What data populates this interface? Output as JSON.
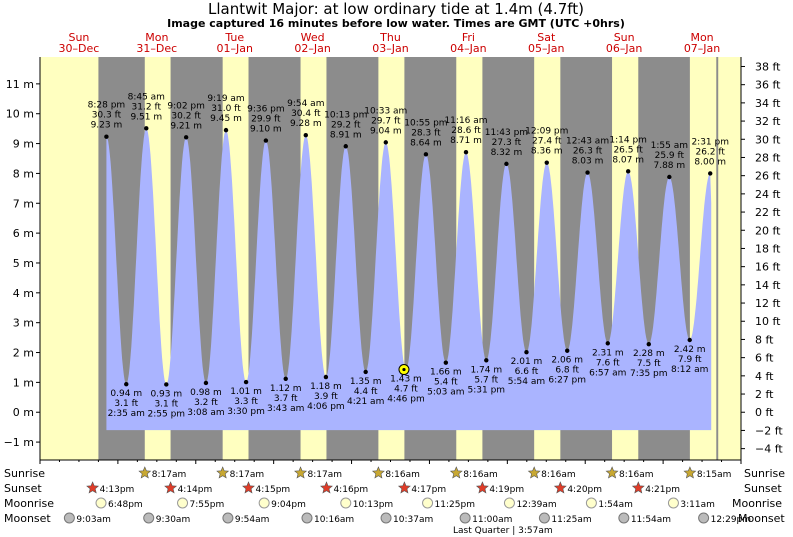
{
  "title": "Llantwit Major: at low  ordinary tide at 1.4m (4.7ft)",
  "subtitle": "Image captured 16 minutes before low water. Times are GMT (UTC +0hrs)",
  "colors": {
    "day_bg": "#ffffc0",
    "night_bg": "#8c8c8c",
    "tide_fill": "#aab4ff",
    "day_label": "#cc0000"
  },
  "days": [
    {
      "dow": "Sun",
      "date": "30–Dec"
    },
    {
      "dow": "Mon",
      "date": "31–Dec"
    },
    {
      "dow": "Tue",
      "date": "01–Jan"
    },
    {
      "dow": "Wed",
      "date": "02–Jan"
    },
    {
      "dow": "Thu",
      "date": "03–Jan"
    },
    {
      "dow": "Fri",
      "date": "04–Jan"
    },
    {
      "dow": "Sat",
      "date": "05–Jan"
    },
    {
      "dow": "Sun",
      "date": "06–Jan"
    },
    {
      "dow": "Mon",
      "date": "07–Jan"
    }
  ],
  "chart_data": {
    "type": "area",
    "title": "Llantwit Major: at low  ordinary tide at 1.4m (4.7ft)",
    "left_axis": {
      "ylim": [
        -1.6,
        11.9
      ],
      "ticks": [
        {
          "v": -1,
          "label": "−1 m"
        },
        {
          "v": 0,
          "label": "0 m"
        },
        {
          "v": 1,
          "label": "1 m"
        },
        {
          "v": 2,
          "label": "2 m"
        },
        {
          "v": 3,
          "label": "3 m"
        },
        {
          "v": 4,
          "label": "4 m"
        },
        {
          "v": 5,
          "label": "5 m"
        },
        {
          "v": 6,
          "label": "6 m"
        },
        {
          "v": 7,
          "label": "7 m"
        },
        {
          "v": 8,
          "label": "8 m"
        },
        {
          "v": 9,
          "label": "9 m"
        },
        {
          "v": 10,
          "label": "10 m"
        },
        {
          "v": 11,
          "label": "11 m"
        }
      ]
    },
    "right_axis": {
      "ticks": [
        {
          "v": -4,
          "label": "−4 ft"
        },
        {
          "v": -2,
          "label": "−2 ft"
        },
        {
          "v": 0,
          "label": "0 ft"
        },
        {
          "v": 2,
          "label": "2 ft"
        },
        {
          "v": 4,
          "label": "4 ft"
        },
        {
          "v": 6,
          "label": "6 ft"
        },
        {
          "v": 8,
          "label": "8 ft"
        },
        {
          "v": 10,
          "label": "10 ft"
        },
        {
          "v": 12,
          "label": "12 ft"
        },
        {
          "v": 14,
          "label": "14 ft"
        },
        {
          "v": 16,
          "label": "16 ft"
        },
        {
          "v": 18,
          "label": "18 ft"
        },
        {
          "v": 20,
          "label": "20 ft"
        },
        {
          "v": 22,
          "label": "22 ft"
        },
        {
          "v": 24,
          "label": "24 ft"
        },
        {
          "v": 26,
          "label": "26 ft"
        },
        {
          "v": 28,
          "label": "28 ft"
        },
        {
          "v": 30,
          "label": "30 ft"
        },
        {
          "v": 32,
          "label": "32 ft"
        },
        {
          "v": 34,
          "label": "34 ft"
        },
        {
          "v": 36,
          "label": "36 ft"
        },
        {
          "v": 38,
          "label": "38 ft"
        }
      ]
    },
    "x_range_hours": [
      0,
      216
    ],
    "sun_periods": [
      {
        "rise": "8:17",
        "set": "16:13"
      },
      {
        "rise": "8:17",
        "set": "16:14"
      },
      {
        "rise": "8:17",
        "set": "16:15"
      },
      {
        "rise": "8:17",
        "set": "16:16"
      },
      {
        "rise": "8:16",
        "set": "16:17"
      },
      {
        "rise": "8:16",
        "set": "16:19"
      },
      {
        "rise": "8:16",
        "set": "16:20"
      },
      {
        "rise": "8:16",
        "set": "16:21"
      },
      {
        "rise": "8:15",
        "set": "16:23"
      }
    ],
    "tides": [
      {
        "type": "high",
        "day": 0,
        "time": "8:28 pm",
        "ft": "30.3 ft",
        "m": 9.23,
        "m_label": "9.23 m"
      },
      {
        "type": "low",
        "day": 1,
        "time": "2:35 am",
        "ft": "3.1 ft",
        "m": 0.94,
        "m_label": "0.94 m"
      },
      {
        "type": "high",
        "day": 1,
        "time": "8:45 am",
        "ft": "31.2 ft",
        "m": 9.51,
        "m_label": "9.51 m"
      },
      {
        "type": "low",
        "day": 1,
        "time": "2:55 pm",
        "ft": "3.1 ft",
        "m": 0.93,
        "m_label": "0.93 m"
      },
      {
        "type": "high",
        "day": 1,
        "time": "9:02 pm",
        "ft": "30.2 ft",
        "m": 9.21,
        "m_label": "9.21 m"
      },
      {
        "type": "low",
        "day": 2,
        "time": "3:08 am",
        "ft": "3.2 ft",
        "m": 0.98,
        "m_label": "0.98 m"
      },
      {
        "type": "high",
        "day": 2,
        "time": "9:19 am",
        "ft": "31.0 ft",
        "m": 9.45,
        "m_label": "9.45 m"
      },
      {
        "type": "low",
        "day": 2,
        "time": "3:30 pm",
        "ft": "3.3 ft",
        "m": 1.01,
        "m_label": "1.01 m"
      },
      {
        "type": "high",
        "day": 2,
        "time": "9:36 pm",
        "ft": "29.9 ft",
        "m": 9.1,
        "m_label": "9.10 m"
      },
      {
        "type": "low",
        "day": 3,
        "time": "3:43 am",
        "ft": "3.7 ft",
        "m": 1.12,
        "m_label": "1.12 m"
      },
      {
        "type": "high",
        "day": 3,
        "time": "9:54 am",
        "ft": "30.4 ft",
        "m": 9.28,
        "m_label": "9.28 m"
      },
      {
        "type": "low",
        "day": 3,
        "time": "4:06 pm",
        "ft": "3.9 ft",
        "m": 1.18,
        "m_label": "1.18 m"
      },
      {
        "type": "high",
        "day": 3,
        "time": "10:13 pm",
        "ft": "29.2 ft",
        "m": 8.91,
        "m_label": "8.91 m"
      },
      {
        "type": "low",
        "day": 4,
        "time": "4:21 am",
        "ft": "4.4 ft",
        "m": 1.35,
        "m_label": "1.35 m"
      },
      {
        "type": "high",
        "day": 4,
        "time": "10:33 am",
        "ft": "29.7 ft",
        "m": 9.04,
        "m_label": "9.04 m"
      },
      {
        "type": "low",
        "day": 4,
        "time": "4:46 pm",
        "ft": "4.7 ft",
        "m": 1.43,
        "m_label": "1.43 m"
      },
      {
        "type": "high",
        "day": 4,
        "time": "10:55 pm",
        "ft": "28.3 ft",
        "m": 8.64,
        "m_label": "8.64 m"
      },
      {
        "type": "low",
        "day": 5,
        "time": "5:03 am",
        "ft": "5.4 ft",
        "m": 1.66,
        "m_label": "1.66 m"
      },
      {
        "type": "high",
        "day": 5,
        "time": "11:16 am",
        "ft": "28.6 ft",
        "m": 8.71,
        "m_label": "8.71 m"
      },
      {
        "type": "low",
        "day": 5,
        "time": "5:31 pm",
        "ft": "5.7 ft",
        "m": 1.74,
        "m_label": "1.74 m"
      },
      {
        "type": "high",
        "day": 5,
        "time": "11:43 pm",
        "ft": "27.3 ft",
        "m": 8.32,
        "m_label": "8.32 m"
      },
      {
        "type": "low",
        "day": 6,
        "time": "5:54 am",
        "ft": "6.6 ft",
        "m": 2.01,
        "m_label": "2.01 m"
      },
      {
        "type": "high",
        "day": 6,
        "time": "12:09 pm",
        "ft": "27.4 ft",
        "m": 8.36,
        "m_label": "8.36 m"
      },
      {
        "type": "low",
        "day": 6,
        "time": "6:27 pm",
        "ft": "6.8 ft",
        "m": 2.06,
        "m_label": "2.06 m"
      },
      {
        "type": "high",
        "day": 7,
        "time": "12:43 am",
        "ft": "26.3 ft",
        "m": 8.03,
        "m_label": "8.03 m"
      },
      {
        "type": "low",
        "day": 7,
        "time": "6:57 am",
        "ft": "7.6 ft",
        "m": 2.31,
        "m_label": "2.31 m"
      },
      {
        "type": "high",
        "day": 7,
        "time": "1:14 pm",
        "ft": "26.5 ft",
        "m": 8.07,
        "m_label": "8.07 m"
      },
      {
        "type": "low",
        "day": 7,
        "time": "7:35 pm",
        "ft": "7.5 ft",
        "m": 2.28,
        "m_label": "2.28 m"
      },
      {
        "type": "high",
        "day": 8,
        "time": "1:55 am",
        "ft": "25.9 ft",
        "m": 7.88,
        "m_label": "7.88 m"
      },
      {
        "type": "low",
        "day": 8,
        "time": "8:12 am",
        "ft": "7.9 ft",
        "m": 2.42,
        "m_label": "2.42 m"
      },
      {
        "type": "high",
        "day": 8,
        "time": "2:31 pm",
        "ft": "26.2 ft",
        "m": 8.0,
        "m_label": "8.00 m"
      }
    ],
    "current_marker": {
      "m": 1.43
    }
  },
  "astro": {
    "row_labels": {
      "sunrise": "Sunrise",
      "sunset": "Sunset",
      "moonrise": "Moonrise",
      "moonset": "Moonset"
    },
    "sunrise": [
      {
        "day": 1,
        "time": "8:17am"
      },
      {
        "day": 2,
        "time": "8:17am"
      },
      {
        "day": 3,
        "time": "8:17am"
      },
      {
        "day": 4,
        "time": "8:16am"
      },
      {
        "day": 5,
        "time": "8:16am"
      },
      {
        "day": 6,
        "time": "8:16am"
      },
      {
        "day": 7,
        "time": "8:16am"
      },
      {
        "day": 8,
        "time": "8:15am"
      }
    ],
    "sunset": [
      {
        "day": 0,
        "time": "4:13pm"
      },
      {
        "day": 1,
        "time": "4:14pm"
      },
      {
        "day": 2,
        "time": "4:15pm"
      },
      {
        "day": 3,
        "time": "4:16pm"
      },
      {
        "day": 4,
        "time": "4:17pm"
      },
      {
        "day": 5,
        "time": "4:19pm"
      },
      {
        "day": 6,
        "time": "4:20pm"
      },
      {
        "day": 7,
        "time": "4:21pm"
      }
    ],
    "moonrise": [
      {
        "day": 0,
        "hour": 18.8,
        "time": "6:48pm"
      },
      {
        "day": 1,
        "hour": 19.92,
        "time": "7:55pm"
      },
      {
        "day": 2,
        "hour": 21.07,
        "time": "9:04pm"
      },
      {
        "day": 3,
        "hour": 22.22,
        "time": "10:13pm"
      },
      {
        "day": 4,
        "hour": 23.42,
        "time": "11:25pm"
      },
      {
        "day": 6,
        "hour": 0.65,
        "time": "12:39am"
      },
      {
        "day": 7,
        "hour": 1.9,
        "time": "1:54am"
      },
      {
        "day": 8,
        "hour": 3.18,
        "time": "3:11am"
      }
    ],
    "moonset": [
      {
        "day": 0,
        "hour": 9.05,
        "time": "9:03am"
      },
      {
        "day": 1,
        "hour": 9.5,
        "time": "9:30am"
      },
      {
        "day": 2,
        "hour": 9.9,
        "time": "9:54am"
      },
      {
        "day": 3,
        "hour": 10.27,
        "time": "10:16am"
      },
      {
        "day": 4,
        "hour": 10.62,
        "time": "10:37am"
      },
      {
        "day": 5,
        "hour": 11.0,
        "time": "11:00am"
      },
      {
        "day": 6,
        "hour": 11.42,
        "time": "11:25am"
      },
      {
        "day": 7,
        "hour": 11.9,
        "time": "11:54am"
      },
      {
        "day": 8,
        "hour": 12.48,
        "time": "12:29pm"
      }
    ],
    "moon_phase": "Last Quarter | 3:57am"
  }
}
